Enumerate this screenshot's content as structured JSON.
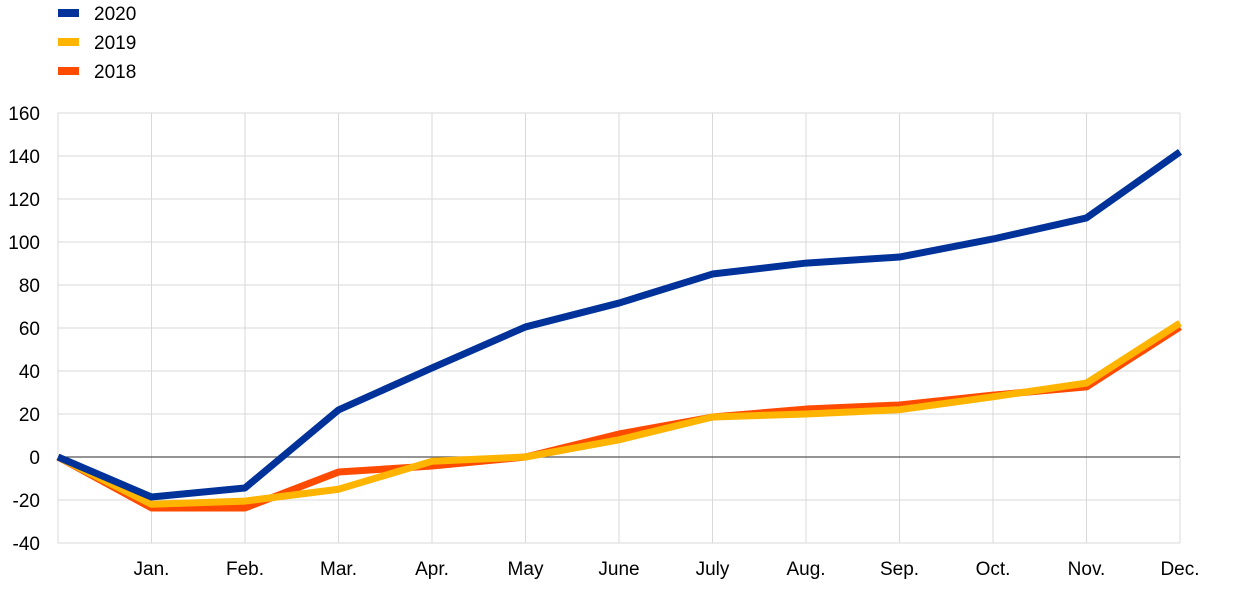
{
  "chart_data": {
    "type": "line",
    "title": "",
    "xlabel": "",
    "ylabel": "",
    "categories": [
      "",
      "Jan.",
      "Feb.",
      "Mar.",
      "Apr.",
      "May",
      "June",
      "July",
      "Aug.",
      "Sep.",
      "Oct.",
      "Nov.",
      "Dec."
    ],
    "ylim": [
      -40,
      160
    ],
    "yticks": [
      -40,
      -20,
      0,
      20,
      40,
      60,
      80,
      100,
      120,
      140,
      160
    ],
    "grid": true,
    "legend_position": "top-left",
    "series": [
      {
        "name": "2018",
        "color": "#FF4B00",
        "values": [
          0,
          -23.7,
          -23.7,
          -7,
          -4.2,
          0,
          10.7,
          18.6,
          22.3,
          24.2,
          28.8,
          32.6,
          60.5
        ]
      },
      {
        "name": "2019",
        "color": "#FFB400",
        "values": [
          0,
          -22,
          -20.5,
          -15,
          -2,
          0,
          8,
          18.6,
          20,
          22,
          28,
          34.4,
          62.3
        ]
      },
      {
        "name": "2020",
        "color": "#003299",
        "values": [
          0,
          -18.6,
          -14.4,
          21.9,
          41.4,
          60.5,
          71.6,
          85.1,
          90.2,
          93,
          101.4,
          111.2,
          141.9
        ]
      }
    ],
    "legend_order": [
      "2020",
      "2019",
      "2018"
    ]
  }
}
